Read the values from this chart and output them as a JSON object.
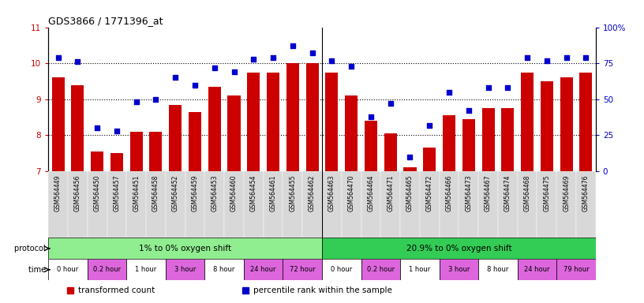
{
  "title": "GDS3866 / 1771396_at",
  "samples": [
    "GSM564449",
    "GSM564456",
    "GSM564450",
    "GSM564457",
    "GSM564451",
    "GSM564458",
    "GSM564452",
    "GSM564459",
    "GSM564453",
    "GSM564460",
    "GSM564454",
    "GSM564461",
    "GSM564455",
    "GSM564462",
    "GSM564463",
    "GSM564470",
    "GSM564464",
    "GSM564471",
    "GSM564465",
    "GSM564472",
    "GSM564466",
    "GSM564473",
    "GSM564467",
    "GSM564474",
    "GSM564468",
    "GSM564475",
    "GSM564469",
    "GSM564476"
  ],
  "bar_values": [
    9.6,
    9.4,
    7.55,
    7.5,
    8.1,
    8.1,
    8.85,
    8.65,
    9.35,
    9.1,
    9.75,
    9.75,
    10.0,
    10.0,
    9.75,
    9.1,
    8.4,
    8.05,
    7.1,
    7.65,
    8.55,
    8.45,
    8.75,
    8.75,
    9.75,
    9.5,
    9.6,
    9.75
  ],
  "dot_values": [
    79,
    76,
    30,
    28,
    48,
    50,
    65,
    60,
    72,
    69,
    78,
    79,
    87,
    82,
    77,
    73,
    38,
    47,
    10,
    32,
    55,
    42,
    58,
    58,
    79,
    77,
    79,
    79
  ],
  "ylim_left": [
    7,
    11
  ],
  "ylim_right": [
    0,
    100
  ],
  "yticks_left": [
    7,
    8,
    9,
    10,
    11
  ],
  "yticks_right": [
    0,
    25,
    50,
    75,
    100
  ],
  "ytick_labels_right": [
    "0",
    "25",
    "50",
    "75",
    "100%"
  ],
  "bar_color": "#cc0000",
  "dot_color": "#0000cc",
  "bg_color": "#ffffff",
  "plot_bg_color": "#ffffff",
  "protocol_groups": [
    {
      "label": "1% to 0% oxygen shift",
      "color": "#90ee90",
      "n": 14
    },
    {
      "label": "20.9% to 0% oxygen shift",
      "color": "#33cc55",
      "n": 14
    }
  ],
  "time_groups_1": [
    {
      "label": "0 hour",
      "color": "#ffffff"
    },
    {
      "label": "0.2 hour",
      "color": "#dd66dd"
    },
    {
      "label": "1 hour",
      "color": "#ffffff"
    },
    {
      "label": "3 hour",
      "color": "#dd66dd"
    },
    {
      "label": "8 hour",
      "color": "#ffffff"
    },
    {
      "label": "24 hour",
      "color": "#dd66dd"
    },
    {
      "label": "72 hour",
      "color": "#dd66dd"
    }
  ],
  "time_groups_2": [
    {
      "label": "0 hour",
      "color": "#ffffff"
    },
    {
      "label": "0.2 hour",
      "color": "#dd66dd"
    },
    {
      "label": "1 hour",
      "color": "#ffffff"
    },
    {
      "label": "3 hour",
      "color": "#dd66dd"
    },
    {
      "label": "8 hour",
      "color": "#ffffff"
    },
    {
      "label": "24 hour",
      "color": "#dd66dd"
    },
    {
      "label": "79 hour",
      "color": "#dd66dd"
    }
  ],
  "legend_items": [
    {
      "label": "transformed count",
      "color": "#cc0000"
    },
    {
      "label": "percentile rank within the sample",
      "color": "#0000cc"
    }
  ],
  "xtick_bg": "#d8d8d8"
}
